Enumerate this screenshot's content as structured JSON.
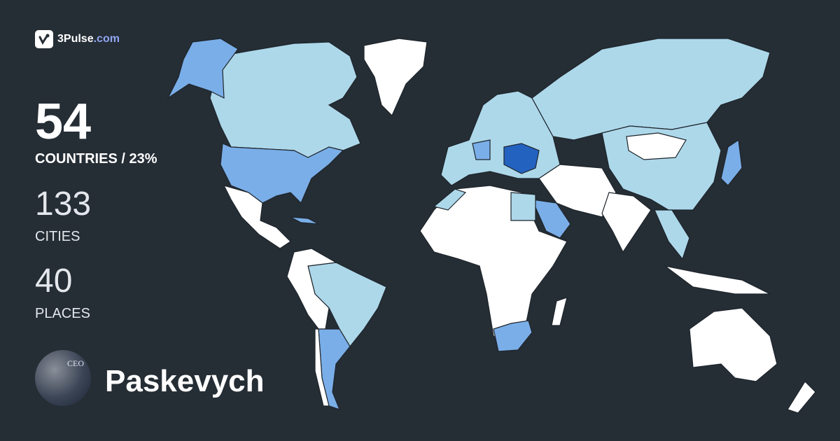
{
  "brand": {
    "name": "3Pulse",
    "tld": ".com",
    "icon": "pulse-check-icon"
  },
  "stats": {
    "countries": {
      "value": "54",
      "label": "COUNTRIES / 23%"
    },
    "cities": {
      "value": "133",
      "label": "CITIES"
    },
    "places": {
      "value": "40",
      "label": "PLACES"
    }
  },
  "user": {
    "name": "Paskevych",
    "avatar_text": "CEO"
  },
  "colors": {
    "background": "#252d35",
    "not_visited": "#ffffff",
    "visited_low": "#add8ea",
    "visited_mid": "#7aaee8",
    "visited_high": "#2462c0",
    "brand_tld": "#8fa6f0"
  }
}
